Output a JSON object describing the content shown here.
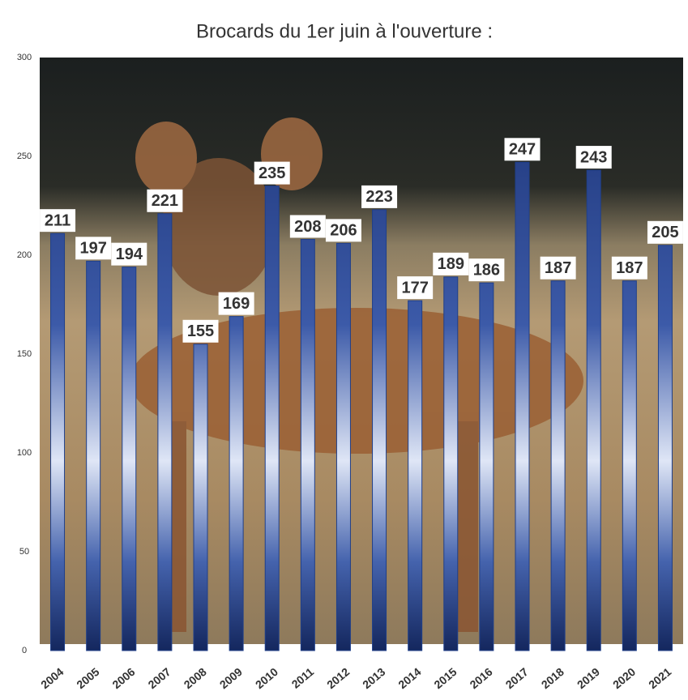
{
  "chart_data": {
    "type": "bar",
    "title": "Brocards du 1er juin à l'ouverture :",
    "categories": [
      "2004",
      "2005",
      "2006",
      "2007",
      "2008",
      "2009",
      "2010",
      "2011",
      "2012",
      "2013",
      "2014",
      "2015",
      "2016",
      "2017",
      "2018",
      "2019",
      "2020",
      "2021"
    ],
    "values": [
      211,
      197,
      194,
      221,
      155,
      169,
      235,
      208,
      206,
      223,
      177,
      189,
      186,
      247,
      187,
      243,
      187,
      205
    ],
    "color": "#1f3f8a",
    "ylim": [
      0,
      300
    ],
    "yticks": [
      0,
      50,
      100,
      150,
      200,
      250,
      300
    ],
    "grid": false
  }
}
